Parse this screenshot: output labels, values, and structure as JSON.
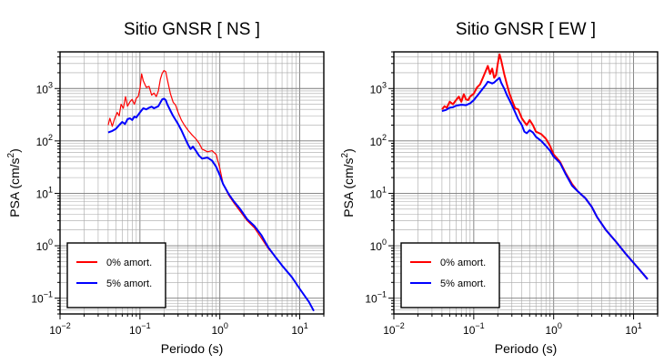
{
  "chart_data": [
    {
      "type": "line",
      "title": "Sitio GNSR [ NS ]",
      "xlabel": "Periodo (s)",
      "ylabel": "PSA (cm/s",
      "ylabel_sup": "2",
      "ylabel_close": ")",
      "xscale": "log",
      "yscale": "log",
      "xlim": [
        0.01,
        20
      ],
      "ylim": [
        0.05,
        5000
      ],
      "grid": true,
      "legend_position": "bottom-left",
      "x_ticks": [
        {
          "base": "10",
          "exp": "−2"
        },
        {
          "base": "10",
          "exp": "−1"
        },
        {
          "base": "10",
          "exp": "0"
        },
        {
          "base": "10",
          "exp": "1"
        }
      ],
      "y_ticks": [
        {
          "base": "10",
          "exp": "−1"
        },
        {
          "base": "10",
          "exp": "0"
        },
        {
          "base": "10",
          "exp": "1"
        },
        {
          "base": "10",
          "exp": "2"
        },
        {
          "base": "10",
          "exp": "3"
        }
      ],
      "series": [
        {
          "name": "0% amort.",
          "color": "#ff0000",
          "width": 1.2,
          "points": [
            [
              0.04,
              200
            ],
            [
              0.042,
              270
            ],
            [
              0.045,
              190
            ],
            [
              0.048,
              260
            ],
            [
              0.052,
              350
            ],
            [
              0.055,
              300
            ],
            [
              0.058,
              500
            ],
            [
              0.062,
              420
            ],
            [
              0.066,
              700
            ],
            [
              0.07,
              460
            ],
            [
              0.075,
              560
            ],
            [
              0.08,
              620
            ],
            [
              0.085,
              500
            ],
            [
              0.09,
              650
            ],
            [
              0.095,
              700
            ],
            [
              0.1,
              1000
            ],
            [
              0.105,
              1900
            ],
            [
              0.11,
              1400
            ],
            [
              0.12,
              1050
            ],
            [
              0.13,
              1100
            ],
            [
              0.14,
              750
            ],
            [
              0.15,
              820
            ],
            [
              0.16,
              700
            ],
            [
              0.17,
              900
            ],
            [
              0.18,
              1500
            ],
            [
              0.19,
              1950
            ],
            [
              0.2,
              2200
            ],
            [
              0.21,
              2100
            ],
            [
              0.22,
              1500
            ],
            [
              0.24,
              800
            ],
            [
              0.26,
              550
            ],
            [
              0.28,
              480
            ],
            [
              0.3,
              350
            ],
            [
              0.33,
              250
            ],
            [
              0.36,
              200
            ],
            [
              0.4,
              160
            ],
            [
              0.45,
              130
            ],
            [
              0.5,
              110
            ],
            [
              0.55,
              90
            ],
            [
              0.6,
              70
            ],
            [
              0.7,
              62
            ],
            [
              0.8,
              65
            ],
            [
              0.9,
              55
            ],
            [
              1.0,
              30
            ],
            [
              1.1,
              15
            ],
            [
              1.3,
              9
            ],
            [
              1.5,
              6.5
            ],
            [
              1.8,
              4.5
            ],
            [
              2.2,
              3
            ],
            [
              2.7,
              2.2
            ],
            [
              3.3,
              1.4
            ],
            [
              4.0,
              0.9
            ],
            [
              5.0,
              0.6
            ],
            [
              6.0,
              0.42
            ],
            [
              8.0,
              0.25
            ],
            [
              10.0,
              0.15
            ],
            [
              13.0,
              0.085
            ],
            [
              15.0,
              0.057
            ]
          ]
        },
        {
          "name": "5% amort.",
          "color": "#0000ff",
          "width": 2,
          "points": [
            [
              0.04,
              145
            ],
            [
              0.045,
              155
            ],
            [
              0.05,
              170
            ],
            [
              0.055,
              200
            ],
            [
              0.06,
              230
            ],
            [
              0.065,
              210
            ],
            [
              0.07,
              260
            ],
            [
              0.075,
              270
            ],
            [
              0.08,
              250
            ],
            [
              0.085,
              290
            ],
            [
              0.09,
              280
            ],
            [
              0.1,
              350
            ],
            [
              0.11,
              420
            ],
            [
              0.12,
              400
            ],
            [
              0.13,
              430
            ],
            [
              0.14,
              450
            ],
            [
              0.15,
              420
            ],
            [
              0.16,
              440
            ],
            [
              0.17,
              460
            ],
            [
              0.18,
              540
            ],
            [
              0.19,
              620
            ],
            [
              0.2,
              640
            ],
            [
              0.21,
              600
            ],
            [
              0.22,
              500
            ],
            [
              0.24,
              380
            ],
            [
              0.26,
              300
            ],
            [
              0.28,
              250
            ],
            [
              0.3,
              210
            ],
            [
              0.33,
              160
            ],
            [
              0.36,
              120
            ],
            [
              0.4,
              85
            ],
            [
              0.43,
              70
            ],
            [
              0.46,
              78
            ],
            [
              0.5,
              65
            ],
            [
              0.55,
              52
            ],
            [
              0.6,
              46
            ],
            [
              0.7,
              48
            ],
            [
              0.8,
              42
            ],
            [
              0.9,
              32
            ],
            [
              1.0,
              22
            ],
            [
              1.1,
              15
            ],
            [
              1.3,
              9.5
            ],
            [
              1.5,
              7
            ],
            [
              1.8,
              5
            ],
            [
              2.2,
              3.2
            ],
            [
              2.7,
              2.4
            ],
            [
              3.3,
              1.6
            ],
            [
              4.0,
              0.95
            ],
            [
              5.0,
              0.6
            ],
            [
              6.0,
              0.42
            ],
            [
              8.0,
              0.25
            ],
            [
              10.0,
              0.15
            ],
            [
              13.0,
              0.085
            ],
            [
              15.0,
              0.057
            ]
          ]
        }
      ]
    },
    {
      "type": "line",
      "title": "Sitio GNSR [ EW ]",
      "xlabel": "Periodo (s)",
      "ylabel": "PSA (cm/s",
      "ylabel_sup": "2",
      "ylabel_close": ")",
      "xscale": "log",
      "yscale": "log",
      "xlim": [
        0.01,
        20
      ],
      "ylim": [
        0.05,
        5000
      ],
      "grid": true,
      "legend_position": "bottom-left",
      "x_ticks": [
        {
          "base": "10",
          "exp": "−2"
        },
        {
          "base": "10",
          "exp": "−1"
        },
        {
          "base": "10",
          "exp": "0"
        },
        {
          "base": "10",
          "exp": "1"
        }
      ],
      "y_ticks": [
        {
          "base": "10",
          "exp": "−1"
        },
        {
          "base": "10",
          "exp": "0"
        },
        {
          "base": "10",
          "exp": "1"
        },
        {
          "base": "10",
          "exp": "2"
        },
        {
          "base": "10",
          "exp": "3"
        }
      ],
      "series": [
        {
          "name": "0% amort.",
          "color": "#ff0000",
          "width": 2,
          "points": [
            [
              0.04,
              400
            ],
            [
              0.043,
              460
            ],
            [
              0.046,
              430
            ],
            [
              0.05,
              560
            ],
            [
              0.055,
              500
            ],
            [
              0.06,
              600
            ],
            [
              0.065,
              700
            ],
            [
              0.07,
              560
            ],
            [
              0.075,
              780
            ],
            [
              0.08,
              620
            ],
            [
              0.085,
              600
            ],
            [
              0.09,
              700
            ],
            [
              0.1,
              800
            ],
            [
              0.11,
              1050
            ],
            [
              0.12,
              1200
            ],
            [
              0.13,
              1600
            ],
            [
              0.14,
              2100
            ],
            [
              0.15,
              2700
            ],
            [
              0.16,
              1900
            ],
            [
              0.17,
              2400
            ],
            [
              0.18,
              1600
            ],
            [
              0.19,
              1800
            ],
            [
              0.2,
              3000
            ],
            [
              0.21,
              4500
            ],
            [
              0.22,
              3500
            ],
            [
              0.24,
              1900
            ],
            [
              0.26,
              1200
            ],
            [
              0.28,
              800
            ],
            [
              0.3,
              600
            ],
            [
              0.33,
              420
            ],
            [
              0.36,
              400
            ],
            [
              0.4,
              270
            ],
            [
              0.43,
              230
            ],
            [
              0.46,
              200
            ],
            [
              0.5,
              250
            ],
            [
              0.55,
              200
            ],
            [
              0.6,
              150
            ],
            [
              0.7,
              135
            ],
            [
              0.8,
              110
            ],
            [
              0.9,
              80
            ],
            [
              1.0,
              55
            ],
            [
              1.2,
              40
            ],
            [
              1.4,
              25
            ],
            [
              1.7,
              15
            ],
            [
              2.0,
              11
            ],
            [
              2.5,
              8
            ],
            [
              3.0,
              5.5
            ],
            [
              3.5,
              3.5
            ],
            [
              4.5,
              2
            ],
            [
              6.0,
              1.2
            ],
            [
              8.0,
              0.7
            ],
            [
              11.0,
              0.4
            ],
            [
              15.0,
              0.23
            ]
          ]
        },
        {
          "name": "5% amort.",
          "color": "#0000ff",
          "width": 2,
          "points": [
            [
              0.04,
              370
            ],
            [
              0.045,
              390
            ],
            [
              0.05,
              430
            ],
            [
              0.055,
              440
            ],
            [
              0.06,
              470
            ],
            [
              0.07,
              490
            ],
            [
              0.08,
              480
            ],
            [
              0.09,
              520
            ],
            [
              0.1,
              600
            ],
            [
              0.11,
              720
            ],
            [
              0.12,
              850
            ],
            [
              0.13,
              1000
            ],
            [
              0.14,
              1150
            ],
            [
              0.15,
              1350
            ],
            [
              0.16,
              1300
            ],
            [
              0.17,
              1250
            ],
            [
              0.18,
              1300
            ],
            [
              0.19,
              1400
            ],
            [
              0.2,
              1500
            ],
            [
              0.21,
              1600
            ],
            [
              0.22,
              1300
            ],
            [
              0.24,
              1000
            ],
            [
              0.26,
              750
            ],
            [
              0.28,
              600
            ],
            [
              0.3,
              480
            ],
            [
              0.33,
              350
            ],
            [
              0.36,
              260
            ],
            [
              0.4,
              200
            ],
            [
              0.43,
              150
            ],
            [
              0.46,
              140
            ],
            [
              0.5,
              160
            ],
            [
              0.55,
              145
            ],
            [
              0.6,
              120
            ],
            [
              0.7,
              100
            ],
            [
              0.8,
              80
            ],
            [
              0.9,
              65
            ],
            [
              1.0,
              50
            ],
            [
              1.2,
              38
            ],
            [
              1.4,
              24
            ],
            [
              1.7,
              14
            ],
            [
              2.0,
              11
            ],
            [
              2.5,
              8
            ],
            [
              3.0,
              5.5
            ],
            [
              3.5,
              3.5
            ],
            [
              4.5,
              2
            ],
            [
              6.0,
              1.2
            ],
            [
              8.0,
              0.7
            ],
            [
              11.0,
              0.4
            ],
            [
              15.0,
              0.23
            ]
          ]
        }
      ]
    }
  ]
}
